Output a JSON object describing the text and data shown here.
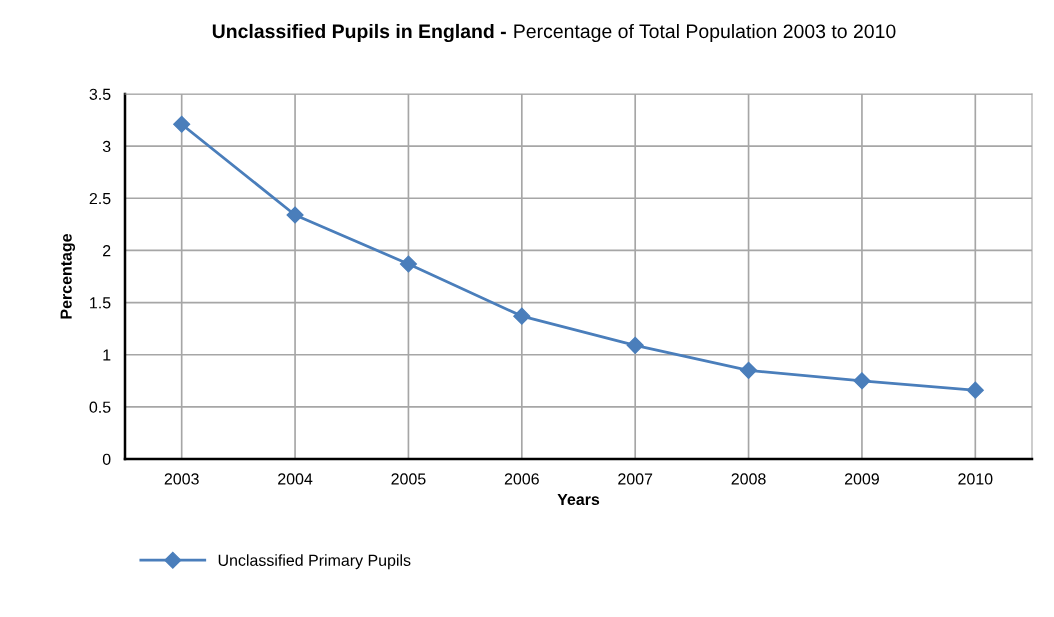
{
  "chart_data": {
    "type": "line",
    "title": "Unclassified Pupils in England -",
    "subtitle": "Percentage of Total Population 2003 to 2010",
    "xlabel": "Years",
    "ylabel": "Percentage",
    "categories": [
      "2003",
      "2004",
      "2005",
      "2006",
      "2007",
      "2008",
      "2009",
      "2010"
    ],
    "series": [
      {
        "name": "Unclassified Primary Pupils",
        "color": "#4a7ebb",
        "values": [
          3.21,
          2.34,
          1.87,
          1.37,
          1.09,
          0.85,
          0.75,
          0.66
        ]
      }
    ],
    "ylim": [
      0,
      3.5
    ],
    "yticks": [
      0,
      0.5,
      1,
      1.5,
      2,
      2.5,
      3,
      3.5
    ],
    "grid": true,
    "legend": "bottom",
    "marker": "diamond",
    "line_style": "solid"
  }
}
